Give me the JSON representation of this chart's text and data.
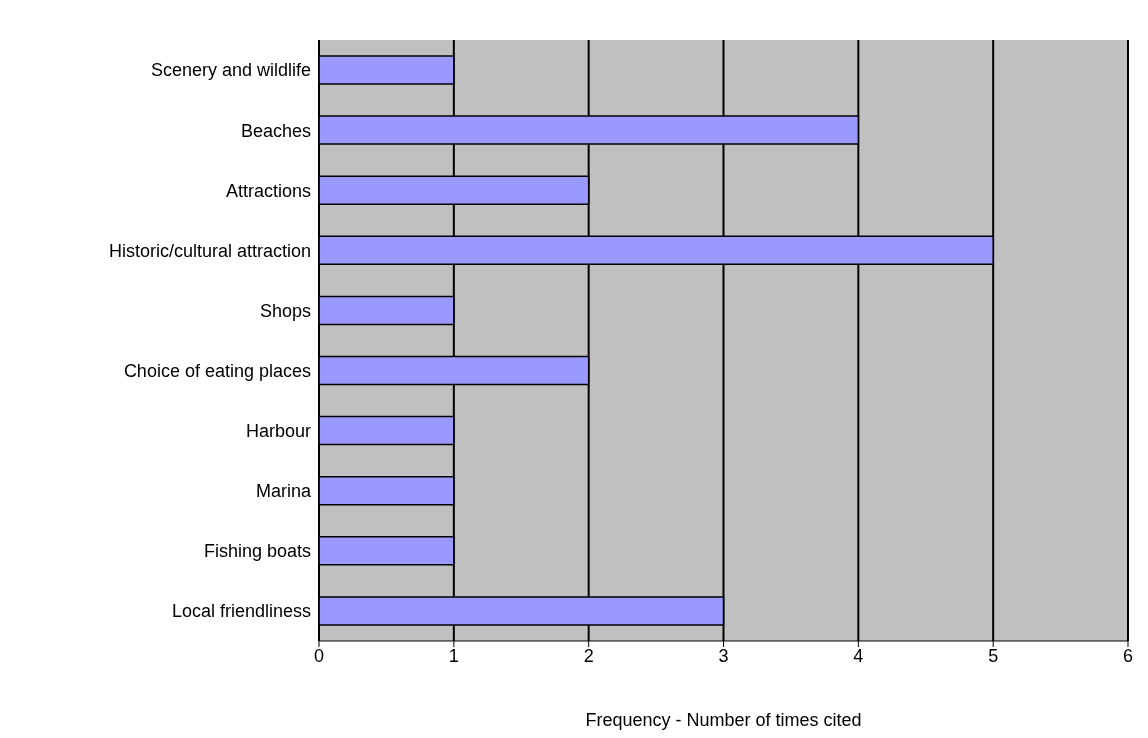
{
  "chart_data": {
    "type": "bar",
    "orientation": "horizontal",
    "xlabel": "Frequency - Number of times cited",
    "categories": [
      "Scenery and wildlife",
      "Beaches",
      "Attractions",
      "Historic/cultural attraction",
      "Shops",
      "Choice of eating places",
      "Harbour",
      "Marina",
      "Fishing boats",
      "Local friendliness"
    ],
    "values": [
      1,
      4,
      2,
      5,
      1,
      2,
      1,
      1,
      1,
      3
    ],
    "color": "#9999ff",
    "xlim": [
      0,
      6
    ],
    "xticks": [
      0,
      1,
      2,
      3,
      4,
      5,
      6
    ],
    "grid": "x",
    "legend": false
  }
}
